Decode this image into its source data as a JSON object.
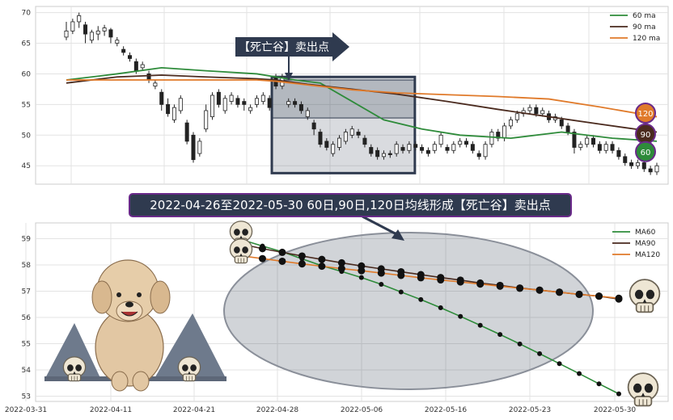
{
  "colors": {
    "ma60": "#2e8b3a",
    "ma90": "#4a2a1e",
    "ma120": "#e07a2a",
    "zone": "#2f3a4f",
    "banner_bg": "#2f3a4f",
    "banner_border": "#6a2a8a",
    "candle_edge": "#222222"
  },
  "top_annotation": "【死亡谷】卖出点",
  "banner_text": "2022-04-26至2022-05-30 60日,90日,120日均线形成【死亡谷】卖出点",
  "badges": [
    "120",
    "90",
    "60"
  ],
  "chart_data": [
    {
      "type": "candlestick",
      "ylim": [
        42,
        71
      ],
      "y_ticks": [
        45,
        50,
        55,
        60,
        65,
        70
      ],
      "legend": [
        "60 ma",
        "90 ma",
        "120 ma"
      ],
      "legend_position": "top-right",
      "grid": true,
      "candles": [
        [
          66.0,
          67.0,
          65.5,
          68.5
        ],
        [
          67.0,
          68.5,
          66.5,
          69.0
        ],
        [
          68.5,
          69.5,
          67.5,
          70.0
        ],
        [
          68.0,
          66.5,
          65.0,
          68.5
        ],
        [
          65.5,
          66.8,
          65.0,
          67.2
        ],
        [
          66.5,
          67.0,
          65.5,
          67.8
        ],
        [
          67.0,
          67.5,
          66.2,
          68.0
        ],
        [
          67.2,
          66.0,
          65.0,
          67.5
        ],
        [
          65.0,
          65.5,
          64.5,
          66.0
        ],
        [
          64.0,
          63.5,
          63.0,
          64.5
        ],
        [
          63.0,
          62.5,
          62.0,
          63.5
        ],
        [
          62.0,
          60.5,
          60.0,
          62.5
        ],
        [
          61.0,
          61.5,
          60.5,
          62.0
        ],
        [
          60.0,
          59.0,
          58.5,
          60.5
        ],
        [
          58.0,
          58.5,
          57.5,
          59.0
        ],
        [
          57.0,
          55.0,
          54.0,
          57.5
        ],
        [
          55.0,
          53.5,
          53.0,
          56.0
        ],
        [
          52.5,
          54.5,
          52.0,
          55.0
        ],
        [
          54.0,
          56.0,
          53.5,
          56.5
        ],
        [
          52.0,
          49.0,
          48.5,
          52.5
        ],
        [
          50.0,
          46.0,
          45.5,
          50.5
        ],
        [
          47.0,
          49.0,
          46.5,
          49.5
        ],
        [
          51.0,
          54.0,
          50.5,
          55.0
        ],
        [
          53.0,
          56.5,
          52.5,
          57.0
        ],
        [
          57.0,
          55.0,
          54.5,
          57.5
        ],
        [
          54.0,
          56.0,
          53.5,
          56.5
        ],
        [
          55.5,
          56.5,
          55.0,
          57.0
        ],
        [
          56.0,
          55.0,
          54.5,
          56.5
        ],
        [
          55.5,
          55.0,
          54.0,
          56.0
        ],
        [
          54.0,
          54.5,
          53.5,
          55.0
        ],
        [
          55.0,
          56.0,
          54.5,
          56.5
        ],
        [
          55.5,
          56.5,
          55.0,
          57.0
        ],
        [
          56.0,
          54.5,
          54.0,
          56.5
        ],
        [
          59.5,
          58.0,
          57.5,
          60.0
        ],
        [
          58.0,
          59.5,
          57.5,
          60.0
        ],
        [
          55.0,
          55.5,
          54.5,
          56.0
        ],
        [
          55.5,
          55.0,
          54.5,
          56.0
        ],
        [
          55.0,
          54.0,
          53.5,
          55.5
        ],
        [
          53.0,
          54.0,
          52.5,
          54.5
        ],
        [
          52.0,
          51.0,
          50.0,
          52.5
        ],
        [
          50.5,
          48.5,
          48.0,
          51.0
        ],
        [
          49.0,
          48.0,
          47.5,
          49.5
        ],
        [
          47.0,
          48.5,
          46.5,
          49.0
        ],
        [
          48.0,
          49.5,
          47.5,
          50.0
        ],
        [
          49.0,
          50.5,
          48.5,
          51.0
        ],
        [
          50.0,
          51.0,
          49.5,
          51.5
        ],
        [
          50.5,
          50.0,
          49.5,
          51.0
        ],
        [
          49.5,
          48.5,
          48.0,
          50.0
        ],
        [
          48.0,
          47.0,
          46.5,
          48.5
        ],
        [
          47.5,
          46.5,
          46.0,
          48.0
        ],
        [
          46.5,
          47.0,
          46.0,
          47.5
        ],
        [
          47.0,
          46.8,
          46.3,
          47.5
        ],
        [
          47.0,
          48.5,
          46.5,
          49.0
        ],
        [
          48.0,
          47.5,
          47.0,
          48.5
        ],
        [
          47.5,
          48.5,
          47.0,
          49.0
        ],
        [
          48.5,
          48.0,
          47.5,
          49.0
        ],
        [
          48.0,
          47.5,
          47.0,
          48.5
        ],
        [
          47.5,
          47.0,
          46.5,
          48.0
        ],
        [
          47.5,
          48.5,
          47.0,
          49.0
        ],
        [
          48.5,
          50.0,
          48.0,
          50.5
        ],
        [
          48.0,
          47.5,
          47.0,
          48.5
        ],
        [
          47.5,
          48.5,
          47.0,
          49.0
        ],
        [
          48.5,
          49.0,
          48.0,
          49.5
        ],
        [
          49.0,
          48.5,
          48.0,
          49.5
        ],
        [
          48.5,
          47.5,
          47.0,
          49.0
        ],
        [
          47.0,
          46.5,
          46.0,
          47.5
        ],
        [
          46.5,
          48.5,
          46.0,
          49.0
        ],
        [
          48.5,
          50.5,
          48.0,
          51.0
        ],
        [
          50.5,
          49.5,
          49.0,
          51.0
        ],
        [
          49.5,
          51.5,
          49.0,
          52.0
        ],
        [
          51.5,
          52.5,
          51.0,
          53.0
        ],
        [
          52.5,
          53.5,
          52.0,
          54.0
        ],
        [
          53.5,
          54.0,
          53.0,
          54.5
        ],
        [
          54.0,
          54.5,
          53.5,
          55.0
        ],
        [
          54.5,
          53.5,
          53.0,
          55.0
        ],
        [
          53.5,
          54.0,
          53.0,
          54.5
        ],
        [
          53.5,
          52.5,
          52.0,
          54.0
        ],
        [
          52.5,
          53.0,
          52.0,
          53.5
        ],
        [
          52.5,
          51.5,
          51.0,
          53.0
        ],
        [
          51.5,
          50.5,
          50.0,
          52.0
        ],
        [
          50.5,
          48.0,
          47.0,
          51.0
        ],
        [
          48.0,
          48.5,
          47.5,
          49.0
        ],
        [
          48.5,
          49.5,
          48.0,
          50.0
        ],
        [
          49.5,
          48.5,
          48.0,
          50.0
        ],
        [
          48.5,
          47.5,
          47.0,
          49.0
        ],
        [
          47.5,
          48.5,
          47.0,
          49.0
        ],
        [
          48.5,
          47.5,
          47.0,
          49.0
        ],
        [
          47.5,
          46.5,
          46.0,
          48.0
        ],
        [
          46.5,
          45.5,
          45.0,
          47.0
        ],
        [
          45.5,
          45.0,
          44.5,
          46.0
        ],
        [
          45.0,
          45.5,
          44.5,
          46.0
        ],
        [
          45.5,
          44.5,
          44.0,
          46.0
        ],
        [
          44.5,
          44.0,
          43.5,
          45.0
        ],
        [
          44.0,
          45.0,
          43.5,
          45.5
        ]
      ],
      "ma60": [
        [
          0,
          59.0
        ],
        [
          8,
          60.0
        ],
        [
          15,
          61.0
        ],
        [
          22,
          60.5
        ],
        [
          30,
          60.0
        ],
        [
          33,
          59.5
        ],
        [
          36,
          59.0
        ],
        [
          40,
          58.5
        ],
        [
          45,
          55.5
        ],
        [
          50,
          52.5
        ],
        [
          56,
          51.0
        ],
        [
          62,
          50.0
        ],
        [
          70,
          49.5
        ],
        [
          78,
          50.5
        ],
        [
          86,
          49.5
        ],
        [
          93,
          49.0
        ]
      ],
      "ma90": [
        [
          0,
          58.5
        ],
        [
          8,
          59.5
        ],
        [
          15,
          59.8
        ],
        [
          22,
          59.5
        ],
        [
          30,
          59.2
        ],
        [
          33,
          59.0
        ],
        [
          38,
          58.3
        ],
        [
          45,
          57.5
        ],
        [
          52,
          56.7
        ],
        [
          60,
          55.5
        ],
        [
          68,
          54.2
        ],
        [
          76,
          53.0
        ],
        [
          84,
          51.8
        ],
        [
          93,
          50.5
        ]
      ],
      "ma120": [
        [
          0,
          59.0
        ],
        [
          8,
          59.0
        ],
        [
          15,
          59.0
        ],
        [
          22,
          59.0
        ],
        [
          30,
          59.0
        ],
        [
          33,
          58.8
        ],
        [
          38,
          58.2
        ],
        [
          45,
          57.4
        ],
        [
          52,
          56.9
        ],
        [
          60,
          56.6
        ],
        [
          68,
          56.3
        ],
        [
          76,
          55.9
        ],
        [
          84,
          54.6
        ],
        [
          93,
          53.0
        ]
      ],
      "highlight_range": [
        33,
        54
      ]
    },
    {
      "type": "line",
      "ylim": [
        52.8,
        59.6
      ],
      "y_ticks": [
        53,
        54,
        55,
        56,
        57,
        58,
        59
      ],
      "x_ticks": [
        "2022-03-31",
        "2022-04-11",
        "2022-04-21",
        "2022-04-28",
        "2022-05-06",
        "2022-05-16",
        "2022-05-23",
        "2022-05-30"
      ],
      "legend": [
        "MA60",
        "MA90",
        "MA120"
      ],
      "legend_position": "top-right",
      "grid": true,
      "series": [
        {
          "name": "MA60",
          "values": [
            58.95,
            58.72,
            58.5,
            58.23,
            57.97,
            57.75,
            57.52,
            57.26,
            56.97,
            56.68,
            56.37,
            56.04,
            55.7,
            55.35,
            54.99,
            54.62,
            54.24,
            53.86,
            53.47,
            53.09
          ]
        },
        {
          "name": "MA90",
          "values": [
            58.78,
            58.62,
            58.48,
            58.34,
            58.21,
            58.08,
            57.96,
            57.85,
            57.74,
            57.63,
            57.52,
            57.42,
            57.31,
            57.22,
            57.12,
            57.04,
            56.96,
            56.88,
            56.81,
            56.7
          ]
        },
        {
          "name": "MA120",
          "values": [
            58.34,
            58.24,
            58.14,
            58.04,
            57.95,
            57.86,
            57.78,
            57.69,
            57.6,
            57.51,
            57.43,
            57.35,
            57.27,
            57.19,
            57.11,
            57.04,
            56.96,
            56.88,
            56.81,
            56.73
          ]
        }
      ]
    }
  ]
}
